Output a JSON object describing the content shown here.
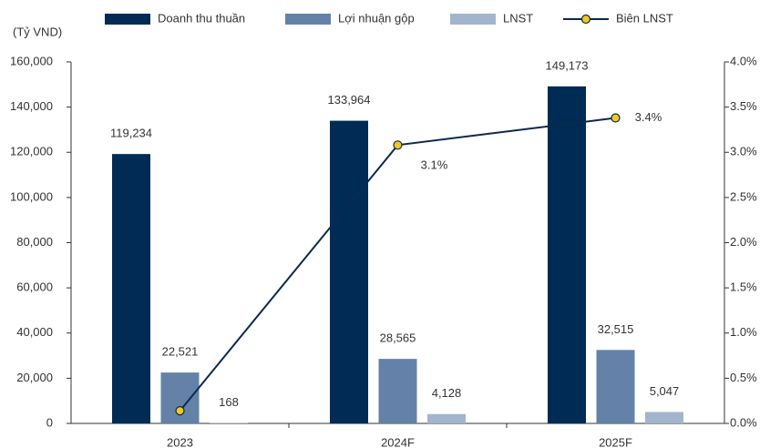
{
  "chart_data": {
    "type": "bar",
    "y_label": "(Tỷ VND)",
    "categories": [
      "2023",
      "2024F",
      "2025F"
    ],
    "series": [
      {
        "name": "Doanh thu thuần",
        "type": "bar",
        "color": "#002b55",
        "values": [
          119234,
          133964,
          149173
        ],
        "value_labels": [
          "119,234",
          "133,964",
          "149,173"
        ]
      },
      {
        "name": "Lợi nhuận gộp",
        "type": "bar",
        "color": "#6482a8",
        "values": [
          22521,
          28565,
          32515
        ],
        "value_labels": [
          "22,521",
          "28,565",
          "32,515"
        ]
      },
      {
        "name": "LNST",
        "type": "bar",
        "color": "#a3b4cd",
        "values": [
          168,
          4128,
          5047
        ],
        "value_labels": [
          "168",
          "4,128",
          "5,047"
        ]
      },
      {
        "name": "Biên LNST",
        "type": "line",
        "axis": "y2",
        "color": "#0b2a4f",
        "marker_color": "#f2c81e",
        "values": [
          0.14,
          3.08,
          3.38
        ],
        "value_labels": [
          null,
          "3.1%",
          "3.4%"
        ]
      }
    ],
    "ylim": [
      0,
      160000
    ],
    "yticks": [
      {
        "value": 0,
        "label": "0"
      },
      {
        "value": 20000,
        "label": "20,000"
      },
      {
        "value": 40000,
        "label": "40,000"
      },
      {
        "value": 60000,
        "label": "60,000"
      },
      {
        "value": 80000,
        "label": "80,000"
      },
      {
        "value": 100000,
        "label": "100,000"
      },
      {
        "value": 120000,
        "label": "120,000"
      },
      {
        "value": 140000,
        "label": "140,000"
      },
      {
        "value": 160000,
        "label": "160,000"
      }
    ],
    "y2lim": [
      0,
      4
    ],
    "y2ticks": [
      {
        "value": 0,
        "label": "0.0%"
      },
      {
        "value": 0.5,
        "label": "0.5%"
      },
      {
        "value": 1,
        "label": "1.0%"
      },
      {
        "value": 1.5,
        "label": "1.5%"
      },
      {
        "value": 2,
        "label": "2.0%"
      },
      {
        "value": 2.5,
        "label": "2.5%"
      },
      {
        "value": 3,
        "label": "3.0%"
      },
      {
        "value": 3.5,
        "label": "3.5%"
      },
      {
        "value": 4,
        "label": "4.0%"
      }
    ],
    "legend": "top"
  }
}
